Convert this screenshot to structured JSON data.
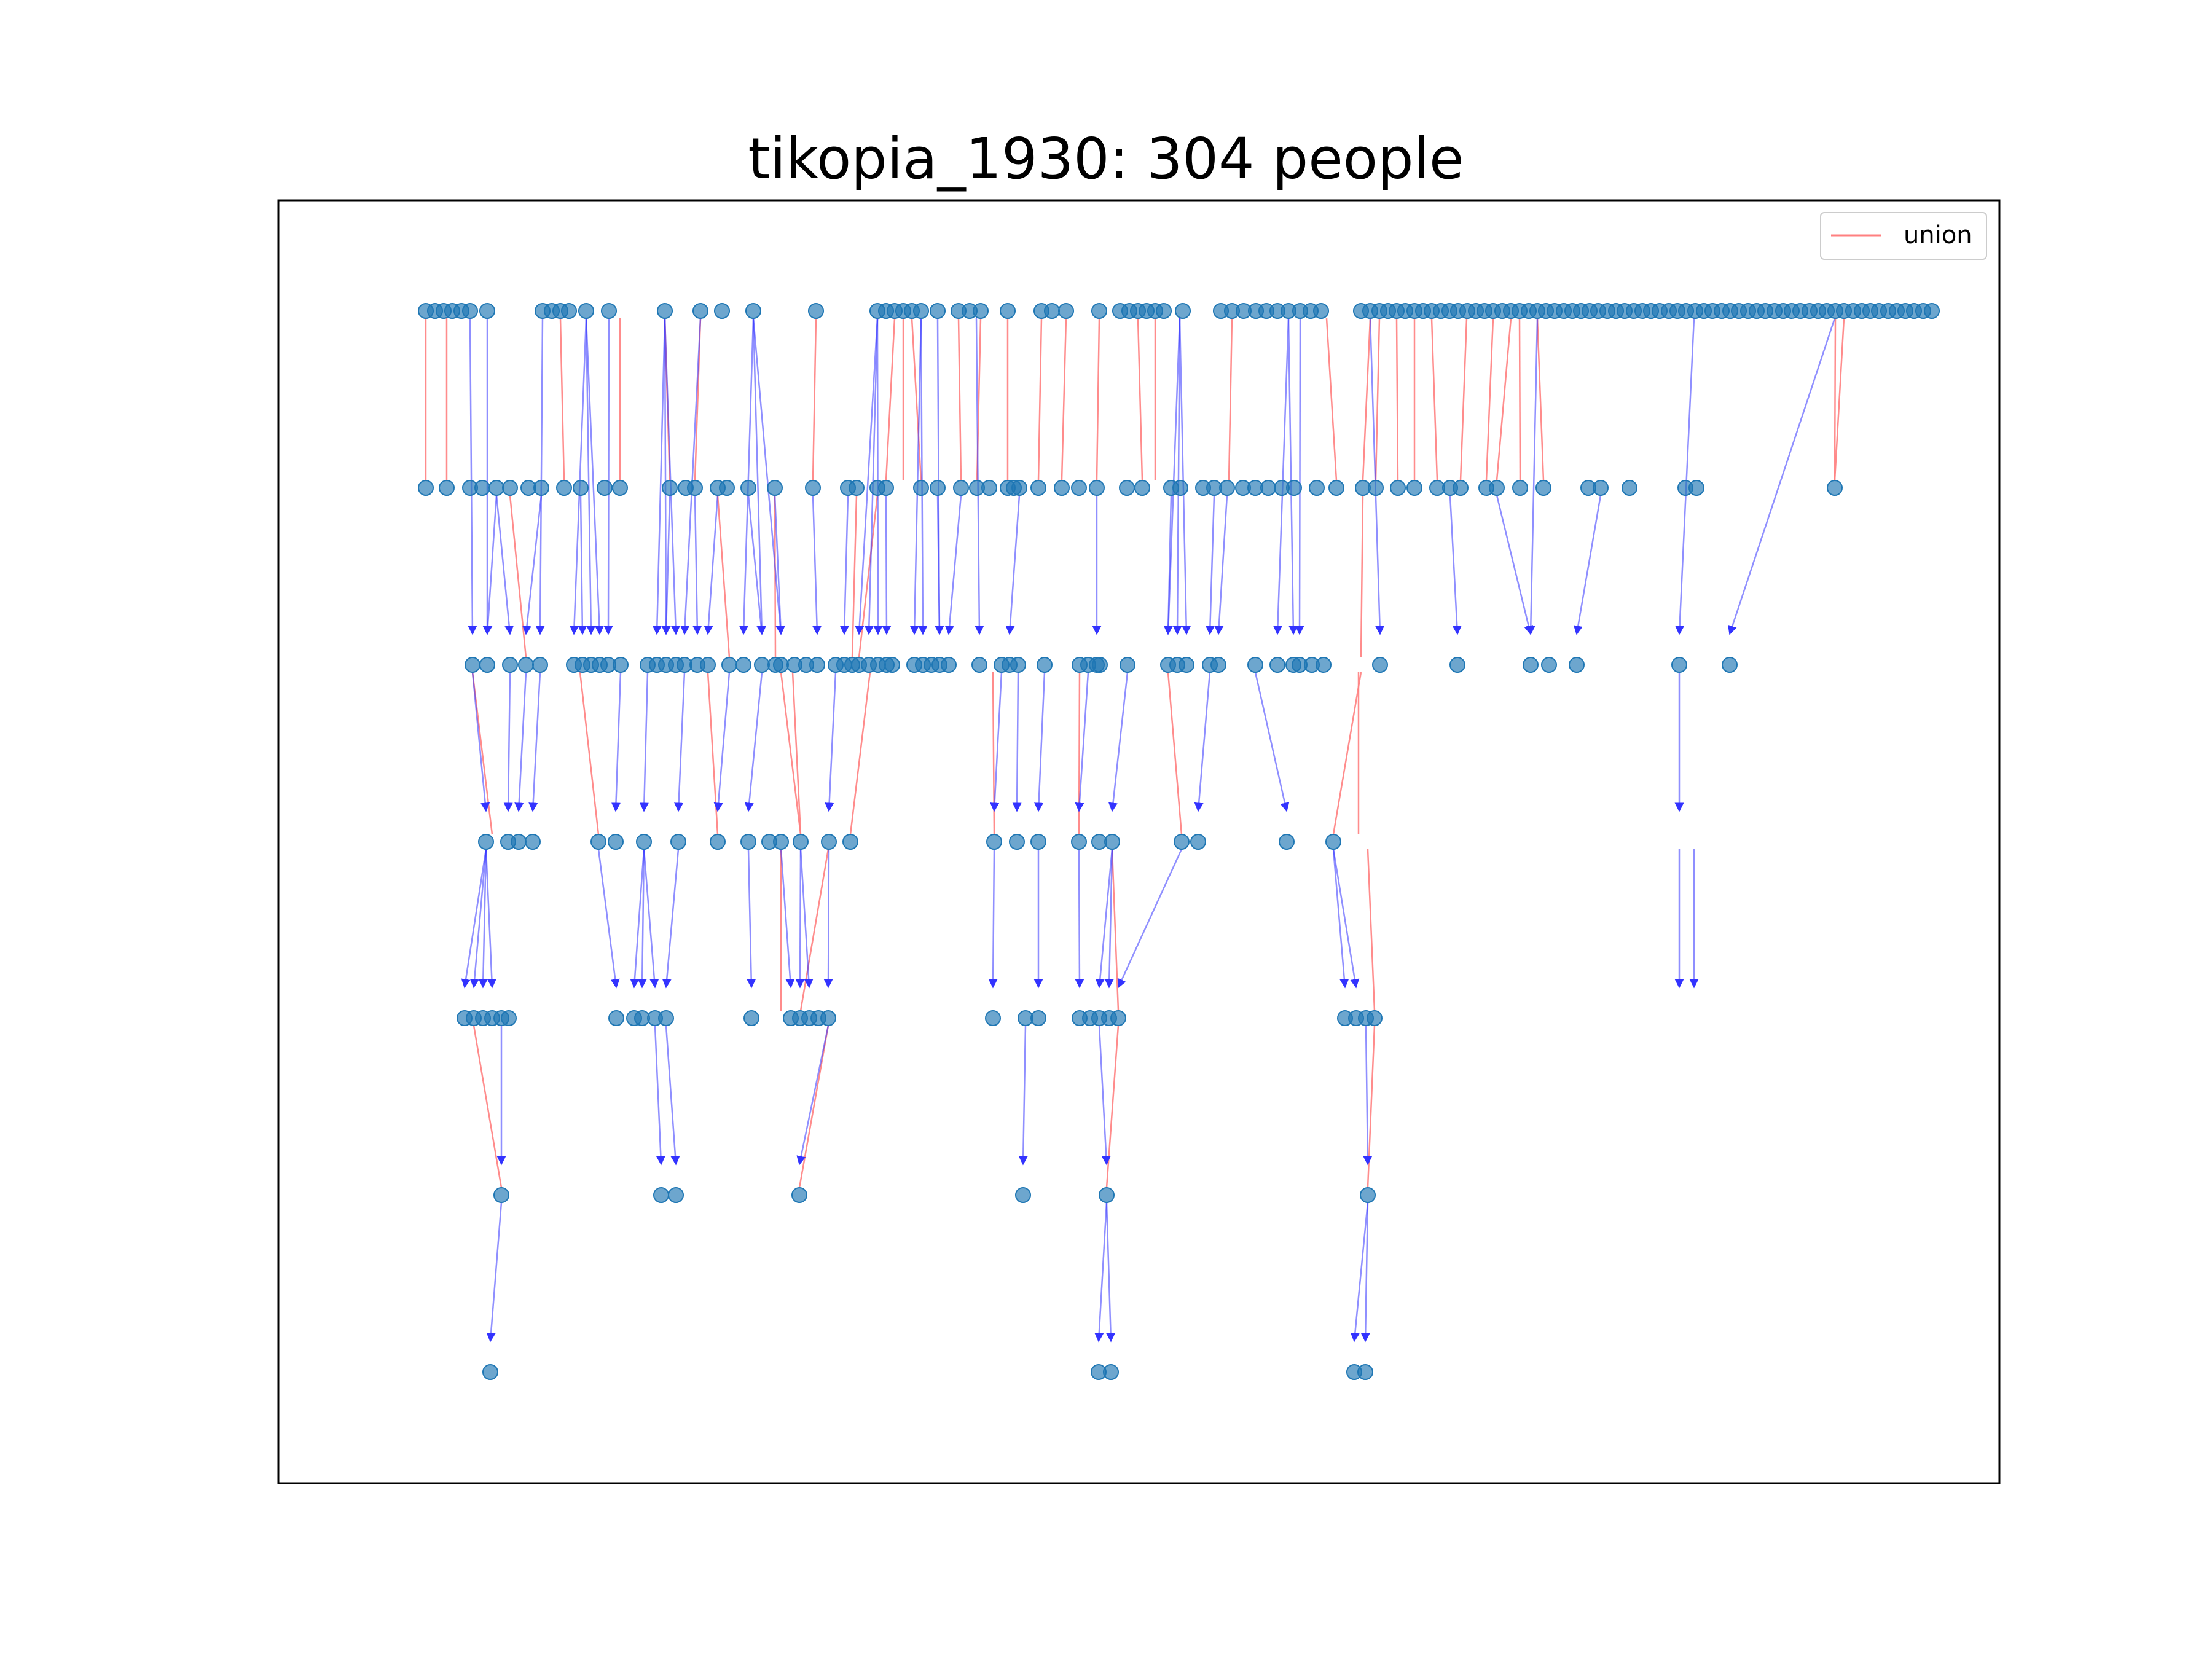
{
  "title": "tikopia_1930: 304 people",
  "legend": {
    "label": "union",
    "color": "#ff8080"
  },
  "colors": {
    "node": "#1f77b4",
    "union": "#ff8080",
    "parent_child": "#3333ff"
  },
  "chart_data": {
    "type": "genealogy-graph",
    "title": "tikopia_1930: 304 people",
    "total_people": 304,
    "legend": [
      "union"
    ],
    "legend_placement": "top-right",
    "grid": false,
    "axes_ticks": false,
    "generations": [
      {
        "generation": 0,
        "visible_node_count": 103
      },
      {
        "generation": 1,
        "visible_node_count": 67
      },
      {
        "generation": 2,
        "visible_node_count": 67
      },
      {
        "generation": 3,
        "visible_node_count": 26
      },
      {
        "generation": 4,
        "visible_node_count": 25
      },
      {
        "generation": 5,
        "visible_node_count": 7
      },
      {
        "generation": 6,
        "visible_node_count": 5
      }
    ]
  }
}
